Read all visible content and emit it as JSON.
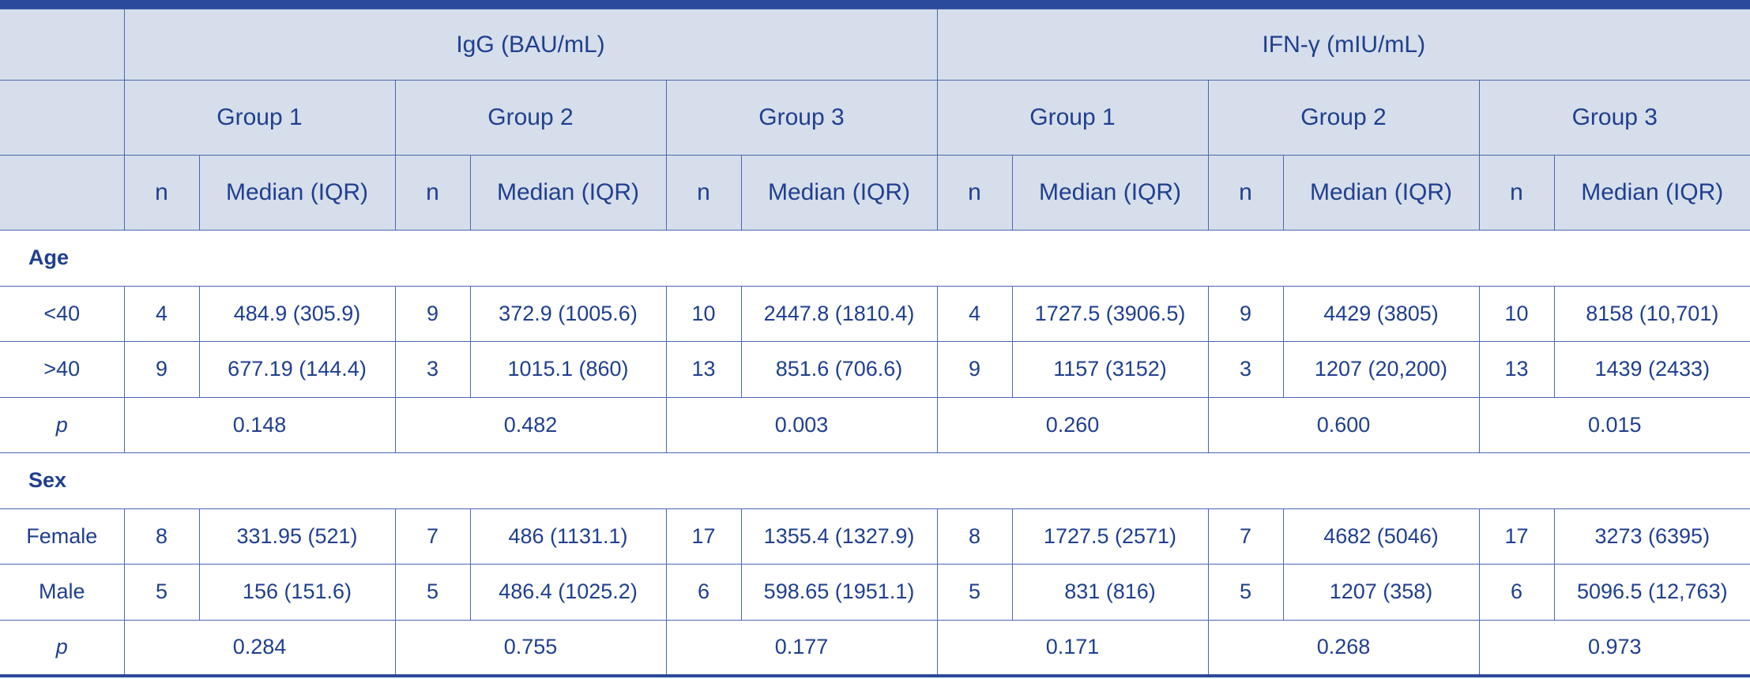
{
  "header": {
    "measures": [
      "IgG (BAU/mL)",
      "IFN-γ (mIU/mL)"
    ],
    "groups": [
      "Group 1",
      "Group 2",
      "Group 3",
      "Group 1",
      "Group 2",
      "Group 3"
    ],
    "columns": [
      "n",
      "Median (IQR)",
      "n",
      "Median (IQR)",
      "n",
      "Median (IQR)",
      "n",
      "Median (IQR)",
      "n",
      "Median (IQR)",
      "n",
      "Median (IQR)"
    ]
  },
  "sections": [
    {
      "title": "Age",
      "rows": [
        {
          "label": "<40",
          "cells": [
            "4",
            "484.9 (305.9)",
            "9",
            "372.9 (1005.6)",
            "10",
            "2447.8 (1810.4)",
            "4",
            "1727.5 (3906.5)",
            "9",
            "4429 (3805)",
            "10",
            "8158 (10,701)"
          ]
        },
        {
          "label": ">40",
          "cells": [
            "9",
            "677.19 (144.4)",
            "3",
            "1015.1 (860)",
            "13",
            "851.6 (706.6)",
            "9",
            "1157 (3152)",
            "3",
            "1207 (20,200)",
            "13",
            "1439 (2433)"
          ]
        }
      ],
      "p": {
        "label": "p",
        "values": [
          "0.148",
          "0.482",
          "0.003",
          "0.260",
          "0.600",
          "0.015"
        ]
      }
    },
    {
      "title": "Sex",
      "rows": [
        {
          "label": "Female",
          "cells": [
            "8",
            "331.95 (521)",
            "7",
            "486 (1131.1)",
            "17",
            "1355.4 (1327.9)",
            "8",
            "1727.5 (2571)",
            "7",
            "4682 (5046)",
            "17",
            "3273 (6395)"
          ]
        },
        {
          "label": "Male",
          "cells": [
            "5",
            "156 (151.6)",
            "5",
            "486.4 (1025.2)",
            "6",
            "598.65 (1951.1)",
            "5",
            "831 (816)",
            "5",
            "1207 (358)",
            "6",
            "5096.5 (12,763)"
          ]
        }
      ],
      "p": {
        "label": "p",
        "values": [
          "0.284",
          "0.755",
          "0.177",
          "0.171",
          "0.268",
          "0.973"
        ]
      }
    }
  ]
}
